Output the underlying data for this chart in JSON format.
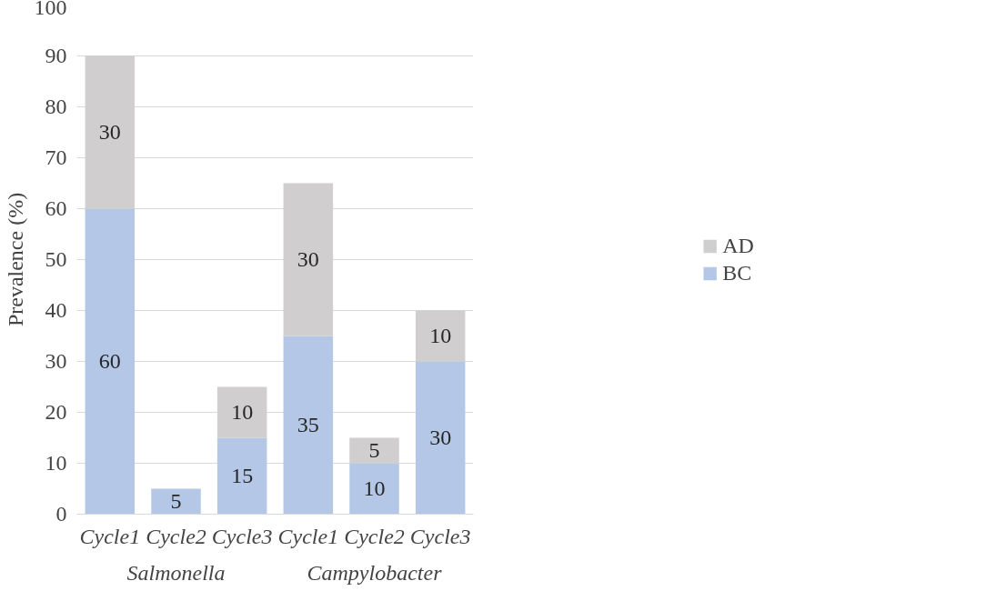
{
  "chart_data": {
    "type": "bar",
    "stacked": true,
    "ylabel": "Prevalence (%)",
    "categories": [
      "Cycle1",
      "Cycle2",
      "Cycle3",
      "Cycle1",
      "Cycle2",
      "Cycle3"
    ],
    "annotations": [
      "Salmonella",
      "Campylobacter"
    ],
    "series": [
      {
        "name": "BC",
        "color": "#b4c7e7",
        "values": [
          60,
          5,
          15,
          35,
          10,
          30
        ],
        "value_labels": [
          "60",
          "5",
          "15",
          "35",
          "10",
          "30"
        ]
      },
      {
        "name": "AD",
        "color": "#d0cece",
        "values": [
          30,
          null,
          10,
          30,
          5,
          10
        ],
        "value_labels": [
          "30",
          null,
          "10",
          "30",
          "5",
          "10"
        ]
      }
    ],
    "ylim": [
      0,
      100
    ],
    "yticks": [
      0,
      10,
      20,
      30,
      40,
      50,
      60,
      70,
      80,
      90,
      100
    ],
    "grid": "y",
    "legend": "right"
  }
}
